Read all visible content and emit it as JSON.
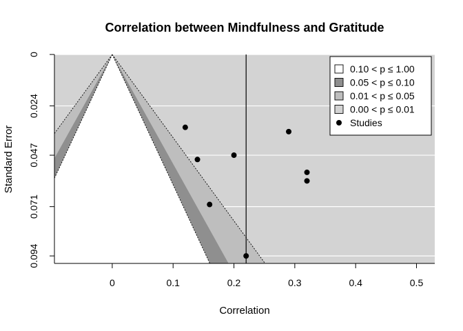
{
  "chart_data": {
    "type": "scatter",
    "subtype": "contour-enhanced funnel plot",
    "title": "Correlation between Mindfulness and Gratitude",
    "xlabel": "Correlation",
    "ylabel": "Standard Error",
    "xlim": [
      -0.095,
      0.53
    ],
    "ylim": [
      0,
      0.0975
    ],
    "y_reversed": true,
    "x_ticks": [
      0,
      0.1,
      0.2,
      0.3,
      0.4,
      0.5
    ],
    "x_tick_labels": [
      "0",
      "0.1",
      "0.2",
      "0.3",
      "0.4",
      "0.5"
    ],
    "y_ticks": [
      0,
      0.024,
      0.047,
      0.071,
      0.094
    ],
    "y_tick_labels": [
      "0",
      "0.024",
      "0.047",
      "0.071",
      "0.094"
    ],
    "y_grid": true,
    "background_color": "#d3d3d3",
    "pooled_estimate": 0.22,
    "null_value": 0,
    "contours": [
      {
        "label": "0.10 < p ≤ 1.00",
        "z": 1.6449,
        "color": "#ffffff"
      },
      {
        "label": "0.05 < p ≤ 0.10",
        "z": 1.96,
        "color": "#8f8f8f"
      },
      {
        "label": "0.01 < p ≤ 0.05",
        "z": 2.5758,
        "color": "#bebebe"
      },
      {
        "label": "0.00 < p ≤ 0.01",
        "z": null,
        "color": "#d3d3d3"
      }
    ],
    "studies_label": "Studies",
    "studies": [
      {
        "x": 0.12,
        "se": 0.034
      },
      {
        "x": 0.14,
        "se": 0.049
      },
      {
        "x": 0.2,
        "se": 0.047
      },
      {
        "x": 0.16,
        "se": 0.07
      },
      {
        "x": 0.29,
        "se": 0.036
      },
      {
        "x": 0.32,
        "se": 0.055
      },
      {
        "x": 0.32,
        "se": 0.059
      },
      {
        "x": 0.22,
        "se": 0.094
      }
    ],
    "legend_position": "top-right"
  }
}
